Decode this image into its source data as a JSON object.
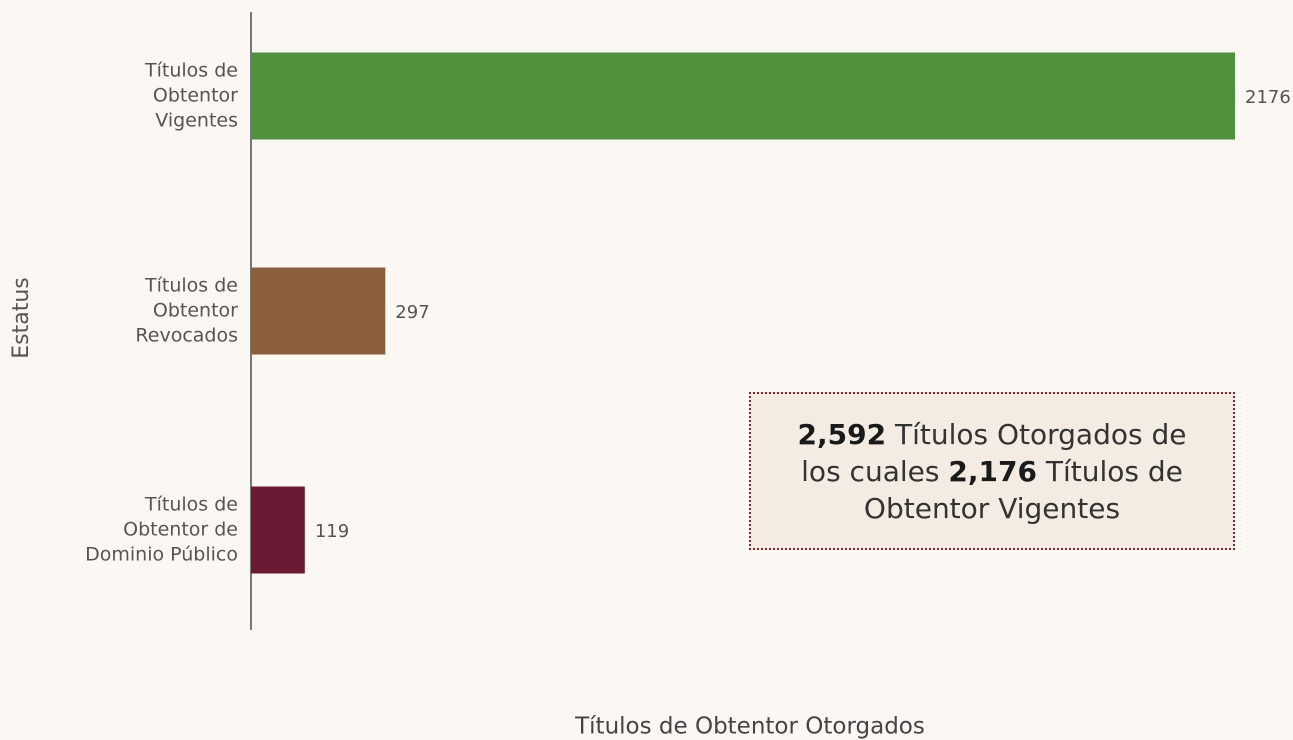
{
  "chart_data": {
    "type": "barh",
    "categories": [
      "Títulos de\nObtentor\nVigentes",
      "Títulos de\nObtentor\nRevocados",
      "Títulos de\nObtentor de\nDominio Público"
    ],
    "values": [
      2176,
      297,
      119
    ],
    "colors": [
      "#4f913c",
      "#8b5e3c",
      "#6b1a34"
    ],
    "xlim": [
      0,
      2176
    ],
    "xlabel": "Títulos de Obtentor Otorgados",
    "ylabel": "Estatus",
    "annotation": [
      {
        "text": "2,592",
        "bold": true
      },
      {
        "text": " Títulos Otorgados de los cuales ",
        "bold": false
      },
      {
        "text": "2,176",
        "bold": true
      },
      {
        "text": " Títulos de Obtentor Vigentes",
        "bold": false
      }
    ]
  }
}
